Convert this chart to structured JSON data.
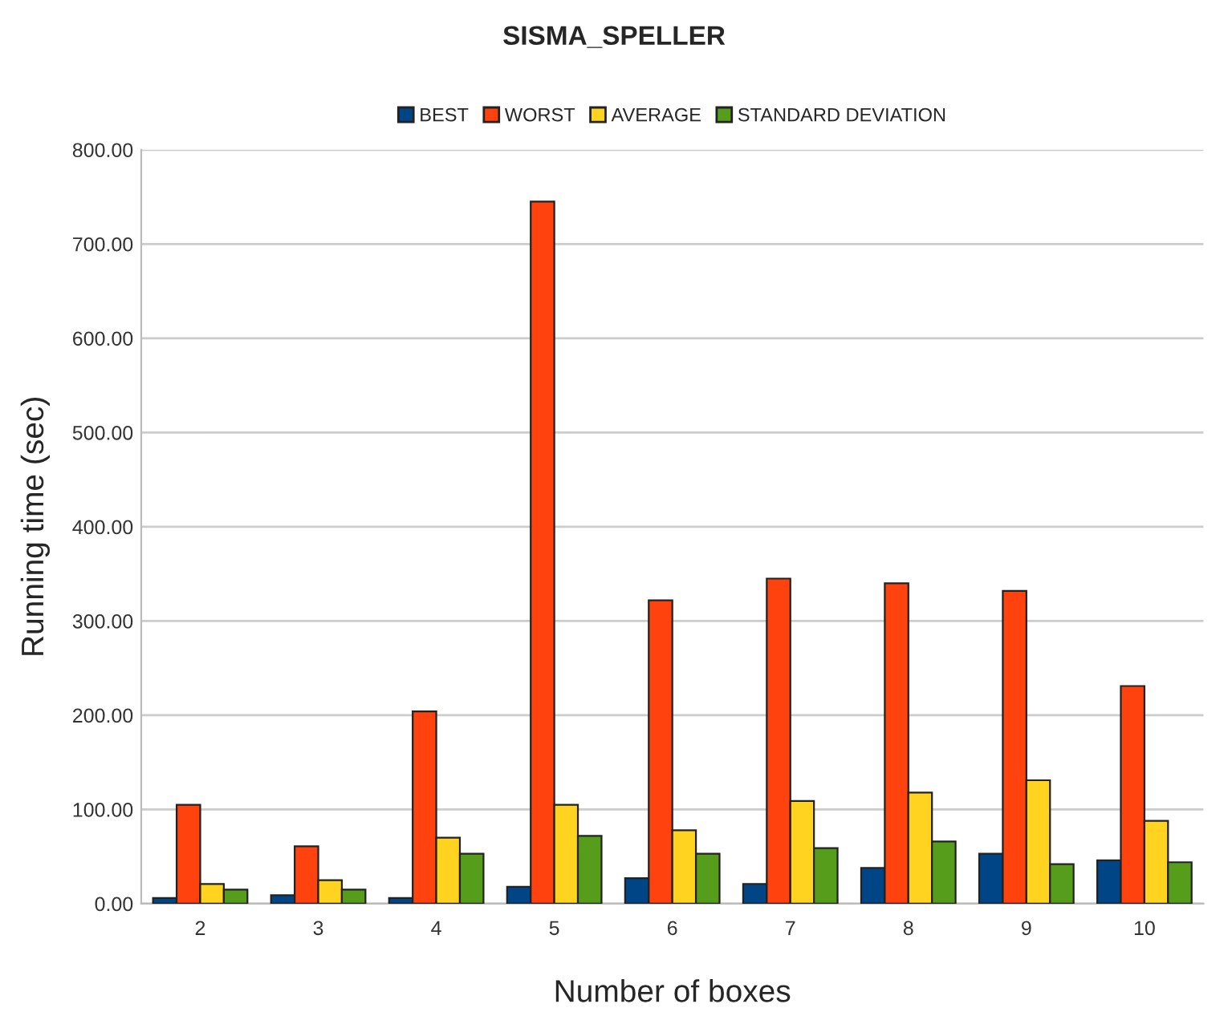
{
  "chart_data": {
    "type": "bar",
    "title": "SISMA_SPELLER",
    "xlabel": "Number of boxes",
    "ylabel": "Running time (sec)",
    "categories": [
      "2",
      "3",
      "4",
      "5",
      "6",
      "7",
      "8",
      "9",
      "10"
    ],
    "series": [
      {
        "name": "BEST",
        "color": "#004586",
        "values": [
          6,
          9,
          6,
          18,
          27,
          21,
          38,
          53,
          46
        ]
      },
      {
        "name": "WORST",
        "color": "#ff420e",
        "values": [
          105,
          61,
          204,
          745,
          322,
          345,
          340,
          332,
          231
        ]
      },
      {
        "name": "AVERAGE",
        "color": "#ffd320",
        "values": [
          21,
          25,
          70,
          105,
          78,
          109,
          118,
          131,
          88
        ]
      },
      {
        "name": "STANDARD DEVIATION",
        "color": "#579d1c",
        "values": [
          15,
          15,
          53,
          72,
          53,
          59,
          66,
          42,
          44
        ]
      }
    ],
    "ylim": [
      0,
      800
    ],
    "yticks": [
      {
        "value": 0,
        "label": "0.00"
      },
      {
        "value": 100,
        "label": "100.00"
      },
      {
        "value": 200,
        "label": "200.00"
      },
      {
        "value": 300,
        "label": "300.00"
      },
      {
        "value": 400,
        "label": "400.00"
      },
      {
        "value": 500,
        "label": "500.00"
      },
      {
        "value": 600,
        "label": "600.00"
      },
      {
        "value": 700,
        "label": "700.00"
      },
      {
        "value": 800,
        "label": "800.00"
      }
    ],
    "grid": "y",
    "legend": "top"
  }
}
